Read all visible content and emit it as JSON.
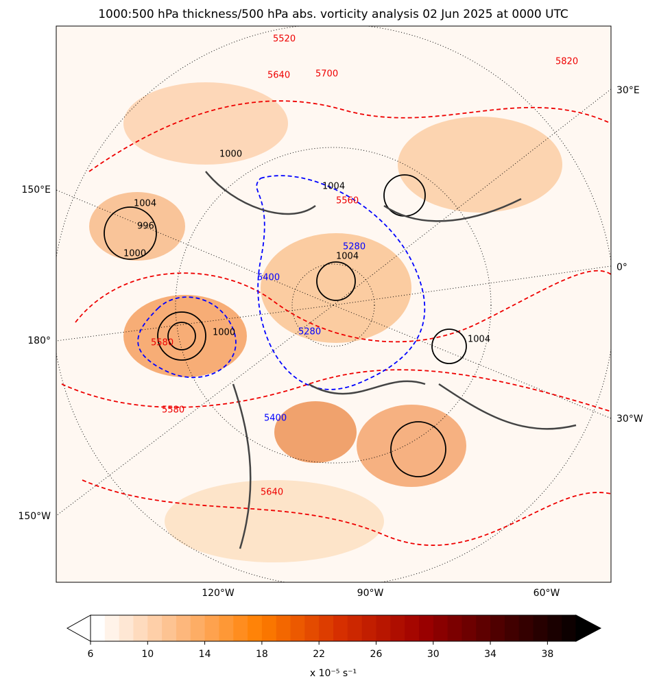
{
  "title": "1000:500 hPa thickness/500 hPa abs. vorticity analysis 02 Jun 2025 at 0000 UTC",
  "map": {
    "left_labels": [
      "150°E",
      "180°",
      "150°W"
    ],
    "right_labels": [
      "30°E",
      "0°",
      "30°W"
    ],
    "bottom_labels": [
      "120°W",
      "90°W",
      "60°W"
    ],
    "contour_labels": {
      "thickness_warm": [
        5520,
        5640,
        5700,
        5580,
        5580,
        5560,
        5640,
        5820
      ],
      "thickness_cold": [
        5280,
        5280,
        5400,
        5400
      ],
      "pressure": [
        1004,
        1004,
        1000,
        996,
        1004,
        1000,
        1004,
        1000
      ]
    }
  },
  "colorbar": {
    "range": [
      6,
      40
    ],
    "step": 1,
    "ticks": [
      6,
      10,
      14,
      18,
      22,
      26,
      30,
      34,
      38
    ],
    "label": "x 10⁻⁵ s⁻¹",
    "colormap": [
      "#ffffff",
      "#fdbb84",
      "#ff7f00",
      "#d62f00",
      "#9e0000",
      "#4a0000",
      "#000000"
    ]
  }
}
